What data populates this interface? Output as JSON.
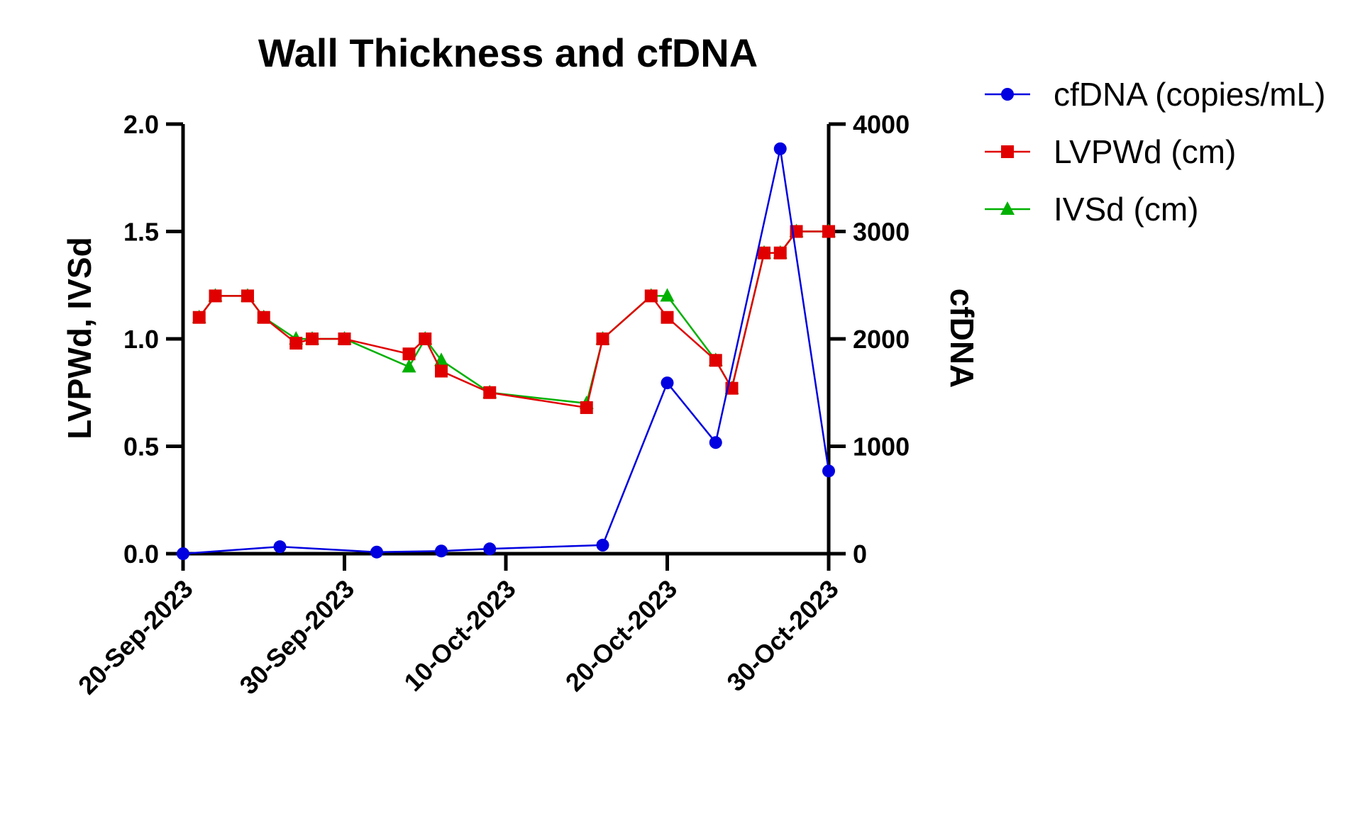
{
  "chart_data": {
    "type": "line",
    "title": "Wall Thickness and cfDNA",
    "ylabel": "LVPWd, IVSd",
    "y2label": "cfDNA",
    "x_ticks": [
      "20-Sep-2023",
      "30-Sep-2023",
      "10-Oct-2023",
      "20-Oct-2023",
      "30-Oct-2023"
    ],
    "x_unit": "days since 20-Sep-2023",
    "xlim": [
      0,
      40
    ],
    "ylim": [
      0,
      2.0
    ],
    "y_ticks": [
      "0.0",
      "0.5",
      "1.0",
      "1.5",
      "2.0"
    ],
    "y2lim": [
      0,
      4000
    ],
    "y2_ticks": [
      "0",
      "1000",
      "2000",
      "3000",
      "4000"
    ],
    "legend_position": "top-right outside",
    "series": [
      {
        "name": "cfDNA (copies/mL)",
        "axis": "right",
        "color": "#0000e0",
        "marker": "circle",
        "x": [
          0,
          6,
          12,
          16,
          19,
          26,
          30,
          33,
          37,
          40
        ],
        "values": [
          0,
          65,
          15,
          25,
          45,
          80,
          1590,
          1035,
          3770,
          770
        ]
      },
      {
        "name": "LVPWd (cm)",
        "axis": "left",
        "color": "#e00000",
        "marker": "square",
        "x": [
          1,
          2,
          4,
          5,
          7,
          8,
          10,
          14,
          15,
          16,
          19,
          25,
          26,
          29,
          30,
          33,
          34,
          36,
          37,
          38,
          40
        ],
        "values": [
          1.1,
          1.2,
          1.2,
          1.1,
          0.98,
          1.0,
          1.0,
          0.93,
          1.0,
          0.85,
          0.75,
          0.68,
          1.0,
          1.2,
          1.1,
          0.9,
          0.77,
          1.4,
          1.4,
          1.5,
          1.5
        ]
      },
      {
        "name": "IVSd (cm)",
        "axis": "left",
        "color": "#00b000",
        "marker": "triangle",
        "x": [
          1,
          2,
          4,
          5,
          7,
          8,
          10,
          14,
          15,
          16,
          19,
          25,
          26,
          29,
          30,
          33,
          34,
          36,
          37,
          38,
          40
        ],
        "values": [
          1.1,
          1.2,
          1.2,
          1.1,
          1.0,
          1.0,
          1.0,
          0.87,
          1.0,
          0.9,
          0.75,
          0.7,
          1.0,
          1.2,
          1.2,
          0.9,
          0.77,
          1.4,
          1.4,
          1.5,
          1.5
        ]
      }
    ]
  }
}
